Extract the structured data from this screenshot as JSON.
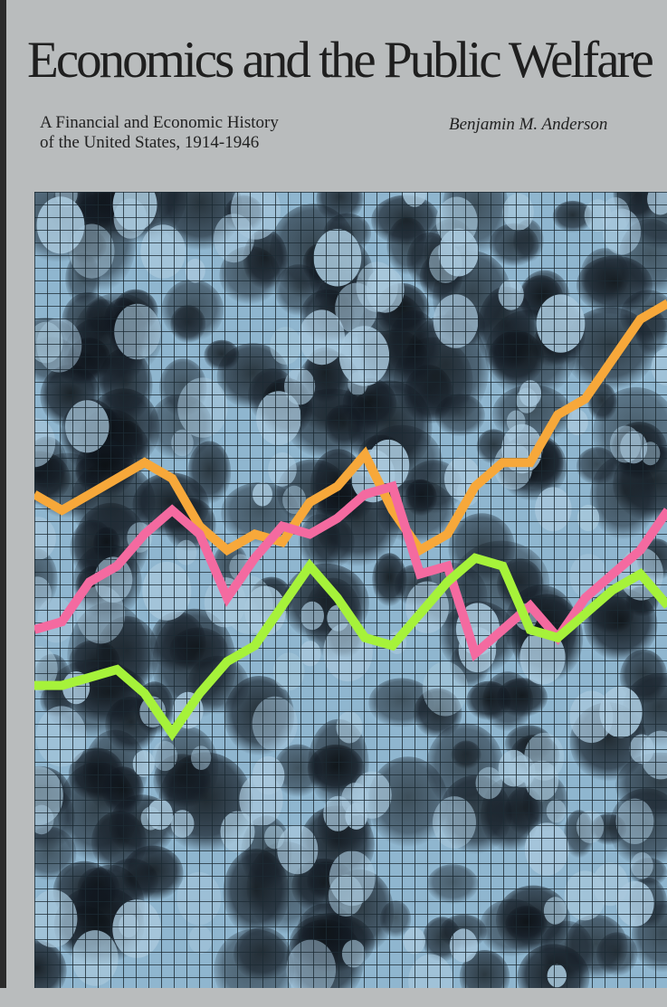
{
  "book": {
    "title": "Economics and the Public Welfare",
    "subtitle_line1": "A Financial and Economic History",
    "subtitle_line2": "of the United States, 1914-1946",
    "author": "Benjamin M. Anderson"
  },
  "colors": {
    "background": "#b9bcbd",
    "photo_tint": "#8fb6cf",
    "grid": "#1b2a33",
    "line_orange": "#f7a83a",
    "line_pink": "#f46aa0",
    "line_green": "#a6f23a"
  },
  "artwork": {
    "description_icon": "crowd-photo-with-grid",
    "lines": [
      {
        "color_key": "line_orange",
        "values": [
          0.62,
          0.6,
          0.62,
          0.64,
          0.66,
          0.64,
          0.58,
          0.55,
          0.57,
          0.56,
          0.61,
          0.63,
          0.67,
          0.6,
          0.55,
          0.57,
          0.63,
          0.66,
          0.66,
          0.72,
          0.74,
          0.79,
          0.84,
          0.86
        ]
      },
      {
        "color_key": "line_pink",
        "values": [
          0.45,
          0.46,
          0.51,
          0.53,
          0.57,
          0.6,
          0.57,
          0.49,
          0.54,
          0.58,
          0.57,
          0.59,
          0.62,
          0.63,
          0.52,
          0.53,
          0.42,
          0.45,
          0.48,
          0.44,
          0.49,
          0.52,
          0.55,
          0.6
        ]
      },
      {
        "color_key": "line_green",
        "values": [
          0.38,
          0.38,
          0.39,
          0.4,
          0.37,
          0.32,
          0.37,
          0.41,
          0.43,
          0.48,
          0.53,
          0.49,
          0.44,
          0.43,
          0.47,
          0.51,
          0.54,
          0.53,
          0.45,
          0.44,
          0.47,
          0.5,
          0.52,
          0.48
        ]
      }
    ]
  }
}
